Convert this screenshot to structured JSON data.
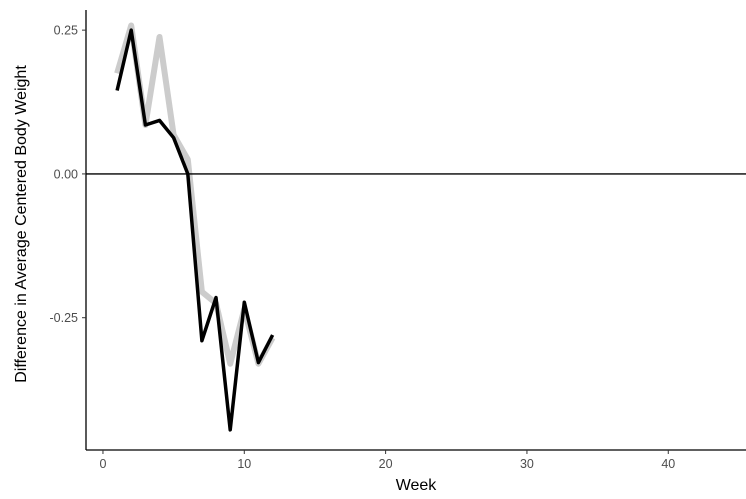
{
  "chart_data": {
    "type": "line",
    "title": "",
    "xlabel": "Week",
    "ylabel": "Difference in Average Centered Body Weight",
    "xlim": [
      -1.2,
      45.5
    ],
    "ylim": [
      -0.48,
      0.285
    ],
    "x_ticks": [
      0,
      10,
      20,
      30,
      40
    ],
    "x_tick_labels": [
      "0",
      "10",
      "20",
      "30",
      "40"
    ],
    "y_ticks": [
      0.25,
      0.0,
      -0.25
    ],
    "y_tick_labels": [
      "0.25",
      "0.00",
      "-0.25"
    ],
    "grid": false,
    "legend": "none",
    "reference_line": {
      "y": 0.0,
      "color": "#000000"
    },
    "series": [
      {
        "color": "#cccccc",
        "x": [
          1,
          2,
          3,
          4,
          5,
          6,
          7,
          8,
          9,
          10,
          11,
          12
        ],
        "values": [
          0.175,
          0.258,
          0.085,
          0.238,
          0.068,
          0.025,
          -0.205,
          -0.225,
          -0.33,
          -0.235,
          -0.33,
          -0.285
        ]
      },
      {
        "color": "#000000",
        "x": [
          1,
          2,
          3,
          4,
          5,
          6,
          7,
          8,
          9,
          10,
          11,
          12
        ],
        "values": [
          0.145,
          0.25,
          0.085,
          0.093,
          0.063,
          0.0,
          -0.29,
          -0.215,
          -0.445,
          -0.223,
          -0.328,
          -0.28
        ]
      }
    ]
  }
}
